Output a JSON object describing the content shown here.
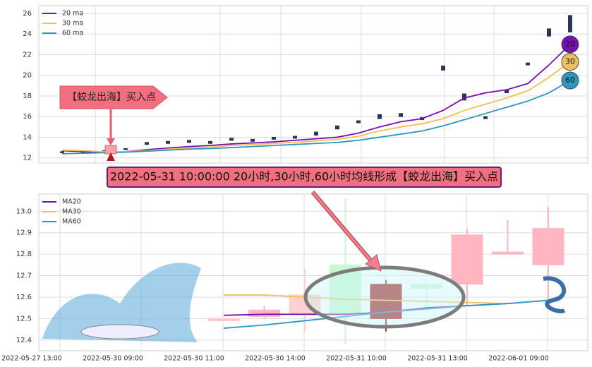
{
  "chart_data": [
    {
      "type": "candlestick",
      "legend": "upper left",
      "grid": true,
      "ylim": [
        11.5,
        26.75
      ],
      "yticks": [
        12,
        14,
        16,
        18,
        20,
        22,
        24,
        26
      ],
      "candles": {
        "color": "#2b3553",
        "open": [
          12.5,
          12.6,
          12.6,
          12.8,
          13.3,
          13.4,
          13.5,
          13.4,
          13.7,
          13.6,
          13.8,
          13.9,
          14.2,
          14.8,
          15.4,
          15.8,
          16.0,
          15.9,
          20.5,
          18.2,
          15.8,
          18.3,
          21.0,
          24.5,
          25.8
        ],
        "close": [
          12.6,
          12.5,
          12.7,
          12.9,
          13.5,
          13.6,
          13.7,
          13.6,
          13.9,
          13.8,
          14.0,
          14.1,
          14.5,
          15.1,
          15.6,
          16.2,
          16.3,
          15.7,
          20.9,
          17.6,
          16.0,
          18.6,
          21.2,
          23.8,
          24.2
        ]
      },
      "series": [
        {
          "name": "20 ma",
          "color": "#7a0fb0",
          "end_label": "20",
          "values": [
            12.7,
            12.6,
            12.5,
            12.6,
            12.8,
            12.95,
            13.1,
            13.2,
            13.35,
            13.45,
            13.55,
            13.7,
            13.85,
            14.0,
            14.4,
            15.0,
            15.5,
            15.8,
            16.6,
            17.8,
            18.3,
            18.6,
            19.2,
            21.0,
            23.0
          ]
        },
        {
          "name": "30 ma",
          "color": "#eec05a",
          "end_label": "30",
          "values": [
            12.75,
            12.7,
            12.6,
            12.6,
            12.7,
            12.85,
            12.95,
            13.05,
            13.2,
            13.3,
            13.4,
            13.5,
            13.65,
            13.8,
            14.1,
            14.6,
            15.0,
            15.3,
            15.8,
            16.6,
            17.2,
            17.8,
            18.5,
            19.8,
            21.3
          ]
        },
        {
          "name": "60 ma",
          "color": "#2b98bf",
          "end_label": "60",
          "values": [
            12.4,
            12.45,
            12.5,
            12.55,
            12.65,
            12.75,
            12.85,
            12.9,
            13.0,
            13.1,
            13.2,
            13.3,
            13.4,
            13.5,
            13.7,
            14.0,
            14.3,
            14.6,
            15.1,
            15.7,
            16.3,
            16.9,
            17.5,
            18.3,
            19.5
          ]
        }
      ],
      "annotation": "【蛟龙出海】买入点"
    },
    {
      "type": "candlestick",
      "legend": "upper left",
      "grid": true,
      "ylim": [
        12.35,
        13.08
      ],
      "yticks": [
        12.4,
        12.5,
        12.6,
        12.7,
        12.8,
        12.9,
        {
          "value": 13,
          "label": "13.0"
        }
      ],
      "x_labels": [
        "2022-05-27 13:00",
        "2022-05-30 09:00",
        "2022-05-30 11:00",
        "2022-05-30 14:00",
        "2022-05-31 10:00",
        "2022-05-31 13:00",
        "2022-06-01 09:00"
      ],
      "candles": {
        "colors": [
          "#ffc8c8",
          "#ffb6c1",
          "#ffd0d0",
          "#c8f7d2",
          "#a52a2a",
          "#d0f5d8",
          "#ffb6c1",
          "#ffb6c1",
          "#ffb6c1"
        ],
        "open": [
          12.49,
          12.51,
          12.52,
          12.75,
          12.5,
          12.66,
          12.66,
          12.8,
          12.75
        ],
        "high": [
          12.5,
          12.56,
          12.73,
          13.06,
          12.68,
          12.68,
          12.92,
          12.96,
          13.02
        ],
        "low": [
          12.49,
          12.5,
          12.44,
          12.38,
          12.44,
          12.55,
          12.56,
          12.8,
          12.57
        ],
        "close": [
          12.5,
          12.54,
          12.61,
          12.52,
          12.66,
          12.64,
          12.89,
          12.81,
          12.92
        ]
      },
      "series": [
        {
          "name": "MA20",
          "color": "#7a0fb0",
          "values": [
            12.515,
            12.52,
            12.52,
            12.52,
            12.53,
            12.55,
            12.56,
            12.57,
            12.585
          ]
        },
        {
          "name": "MA30",
          "color": "#eec05a",
          "values": [
            12.61,
            12.61,
            12.6,
            12.59,
            12.585,
            12.58,
            12.575,
            12.57,
            12.585
          ]
        },
        {
          "name": "MA60",
          "color": "#2b98bf",
          "values": [
            12.455,
            12.47,
            12.49,
            12.51,
            12.53,
            12.545,
            12.56,
            12.57,
            12.585
          ]
        }
      ],
      "annotation": "2022-05-31 10:00:00 20小时,30小时,60小时均线形成【蛟龙出海】买入点"
    }
  ]
}
